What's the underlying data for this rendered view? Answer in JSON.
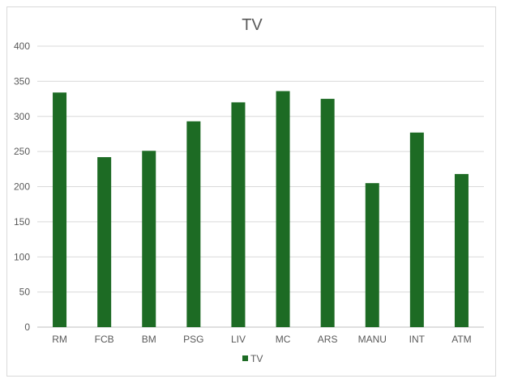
{
  "chart_data": {
    "type": "bar",
    "title": "TV",
    "categories": [
      "RM",
      "FCB",
      "BM",
      "PSG",
      "LIV",
      "MC",
      "ARS",
      "MANU",
      "INT",
      "ATM"
    ],
    "series": [
      {
        "name": "TV",
        "values": [
          334,
          242,
          251,
          293,
          320,
          336,
          325,
          205,
          277,
          218
        ]
      }
    ],
    "ylim": [
      0,
      400
    ],
    "yticks": [
      0,
      50,
      100,
      150,
      200,
      250,
      300,
      350,
      400
    ],
    "grid": true,
    "legend": "bottom",
    "colors": {
      "bar": "#1d6b24"
    }
  }
}
